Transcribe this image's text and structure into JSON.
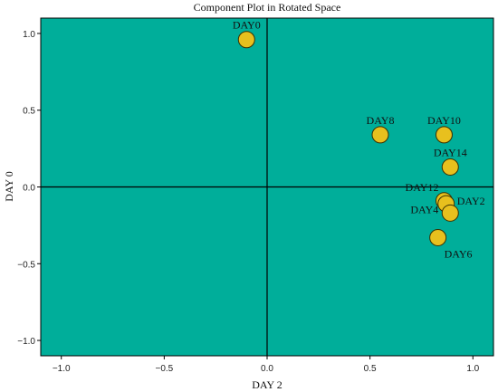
{
  "chart_data": {
    "type": "scatter",
    "title": "Component Plot in Rotated Space",
    "xlabel": "DAY 2",
    "ylabel": "DAY 0",
    "xlim": [
      -1.1,
      1.1
    ],
    "ylim": [
      -1.1,
      1.1
    ],
    "x_ticks": [
      {
        "value": -1.0,
        "label": "−1.0"
      },
      {
        "value": -0.5,
        "label": "−0.5"
      },
      {
        "value": 0.0,
        "label": "0.0"
      },
      {
        "value": 0.5,
        "label": "0.5"
      },
      {
        "value": 1.0,
        "label": "1.0"
      }
    ],
    "y_ticks": [
      {
        "value": 1.0,
        "label": "1.0"
      },
      {
        "value": 0.5,
        "label": "0.5"
      },
      {
        "value": 0.0,
        "label": "0.0"
      },
      {
        "value": -0.5,
        "label": "−0.5"
      },
      {
        "value": -1.0,
        "label": "−1.0"
      }
    ],
    "points": [
      {
        "label": "DAY0",
        "x": -0.1,
        "y": 0.96,
        "label_pos": "above"
      },
      {
        "label": "DAY8",
        "x": 0.55,
        "y": 0.34,
        "label_pos": "above"
      },
      {
        "label": "DAY10",
        "x": 0.86,
        "y": 0.34,
        "label_pos": "above"
      },
      {
        "label": "DAY14",
        "x": 0.89,
        "y": 0.13,
        "label_pos": "above"
      },
      {
        "label": "DAY12",
        "x": 0.86,
        "y": -0.09,
        "label_pos": "above-left"
      },
      {
        "label": "DAY2",
        "x": 0.87,
        "y": -0.11,
        "label_pos": "right"
      },
      {
        "label": "DAY4",
        "x": 0.89,
        "y": -0.17,
        "label_pos": "left"
      },
      {
        "label": "DAY6",
        "x": 0.83,
        "y": -0.33,
        "label_pos": "below-right"
      }
    ],
    "colors": {
      "plot_background": "#00ae9a",
      "marker_fill": "#e8c01e",
      "marker_edge": "#3a3000",
      "axis_line": "#000000"
    }
  }
}
